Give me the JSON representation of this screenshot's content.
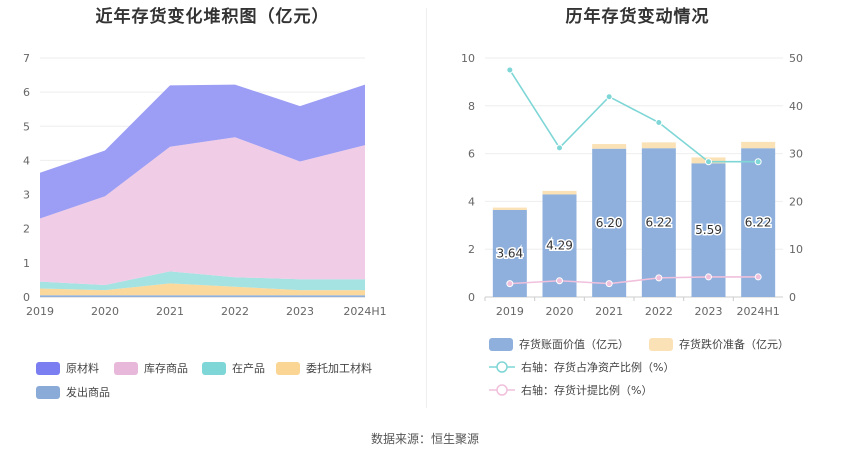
{
  "footer": "数据来源：恒生聚源",
  "chart_data": [
    {
      "type": "area",
      "stacked": true,
      "title": "近年存货变化堆积图（亿元）",
      "categories": [
        "2019",
        "2020",
        "2021",
        "2022",
        "2023",
        "2024H1"
      ],
      "ylim": [
        0,
        7
      ],
      "yticks": [
        0,
        1,
        2,
        3,
        4,
        5,
        6,
        7
      ],
      "grid": true,
      "legend_position": "bottom",
      "series": [
        {
          "name": "发出商品",
          "color": "#8fb0dc",
          "values": [
            0.05,
            0.05,
            0.05,
            0.05,
            0.05,
            0.05
          ]
        },
        {
          "name": "委托加工材料",
          "color": "#fbd89c",
          "values": [
            0.2,
            0.15,
            0.35,
            0.25,
            0.15,
            0.15
          ]
        },
        {
          "name": "在产品",
          "color": "#a5e2e2",
          "values": [
            0.2,
            0.15,
            0.35,
            0.28,
            0.32,
            0.32
          ]
        },
        {
          "name": "库存商品",
          "color": "#f0cce6",
          "values": [
            1.85,
            2.6,
            3.65,
            4.1,
            3.45,
            3.93
          ]
        },
        {
          "name": "原材料",
          "color": "#9c9df4",
          "values": [
            1.34,
            1.34,
            1.8,
            1.54,
            1.62,
            1.77
          ]
        }
      ],
      "legend_order": [
        "原材料",
        "库存商品",
        "在产品",
        "委托加工材料",
        "发出商品"
      ],
      "legend_colors": {
        "原材料": "#7b7ef0",
        "库存商品": "#e8b8da",
        "在产品": "#7fd6d6",
        "委托加工材料": "#fbd593",
        "发出商品": "#8aaad8"
      }
    },
    {
      "type": "bar",
      "stacked": true,
      "title": "历年存货变动情况",
      "categories": [
        "2019",
        "2020",
        "2021",
        "2022",
        "2023",
        "2024H1"
      ],
      "ylim": [
        0,
        10
      ],
      "yticks": [
        0,
        2,
        4,
        6,
        8,
        10
      ],
      "y2lim": [
        0,
        50
      ],
      "y2ticks": [
        0,
        10,
        20,
        30,
        40,
        50
      ],
      "grid": true,
      "legend_position": "bottom",
      "series": [
        {
          "name": "存货账面价值（亿元）",
          "color": "#8fb0dc",
          "values": [
            3.64,
            4.29,
            6.2,
            6.22,
            5.59,
            6.22
          ],
          "labels": [
            "3.64",
            "4.29",
            "6.20",
            "6.22",
            "5.59",
            "6.22"
          ]
        },
        {
          "name": "存货跌价准备（亿元）",
          "color": "#fbe1b6",
          "values": [
            0.1,
            0.15,
            0.2,
            0.25,
            0.25,
            0.27
          ]
        }
      ],
      "lines": [
        {
          "name": "右轴：存货占净资产比例（%）",
          "color": "#7fd6d6",
          "axis": "right",
          "values": [
            47.5,
            31.2,
            41.9,
            36.5,
            28.3,
            28.3
          ]
        },
        {
          "name": "右轴：存货计提比例（%）",
          "color": "#f0c0dc",
          "axis": "right",
          "values": [
            2.8,
            3.4,
            2.8,
            4.0,
            4.2,
            4.2
          ]
        }
      ]
    }
  ]
}
